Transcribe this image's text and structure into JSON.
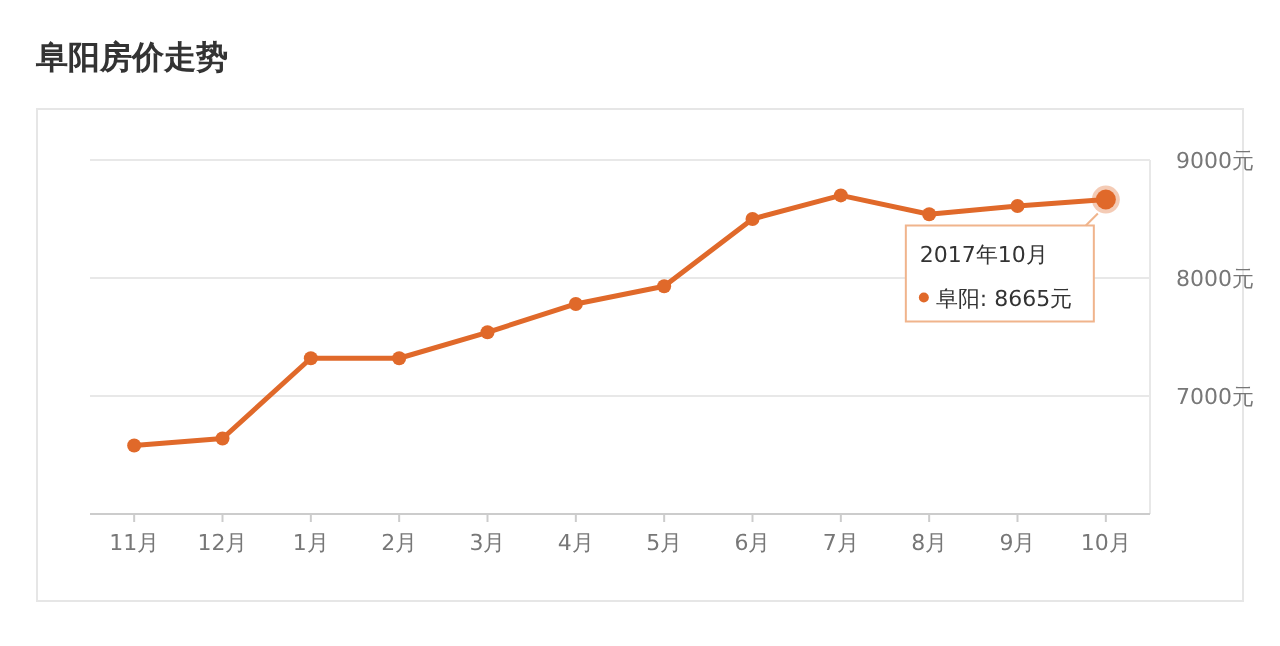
{
  "chart_data": {
    "type": "line",
    "title": "阜阳房价走势",
    "categories": [
      "11月",
      "12月",
      "1月",
      "2月",
      "3月",
      "4月",
      "5月",
      "6月",
      "7月",
      "8月",
      "9月",
      "10月"
    ],
    "series": [
      {
        "color": "#e0692a",
        "values": [
          6580,
          6640,
          7320,
          7320,
          7540,
          7780,
          7930,
          8500,
          8700,
          8540,
          8610,
          8665
        ]
      }
    ],
    "ylim": [
      6000,
      9000
    ],
    "yticks": [
      {
        "value": 7000,
        "label": "7000元"
      },
      {
        "value": 8000,
        "label": "8000元"
      },
      {
        "value": 9000,
        "label": "9000元"
      }
    ],
    "grid": "y",
    "marker": "circle",
    "line_style": "solid",
    "annotations": [
      "2017年10月",
      "阜阳: 8665元"
    ]
  }
}
